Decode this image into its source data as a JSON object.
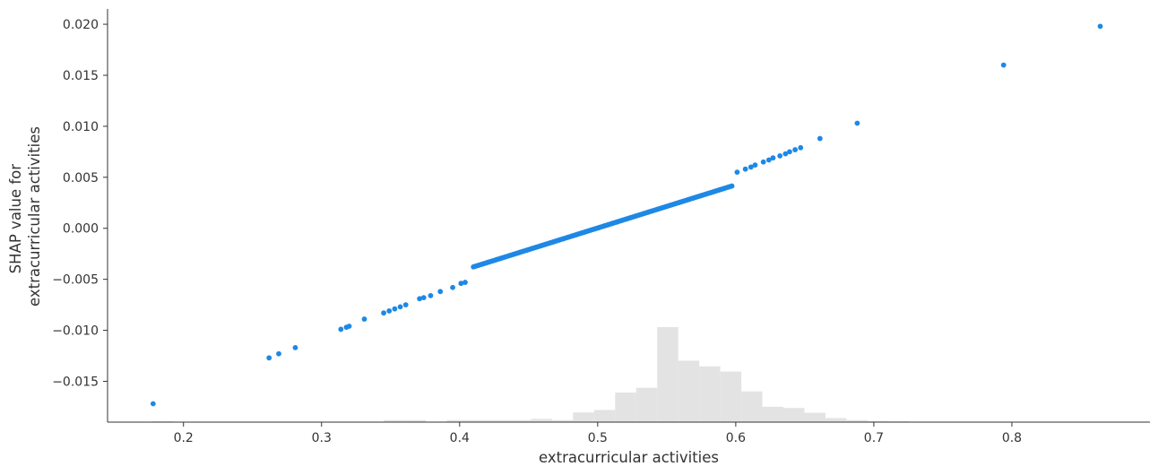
{
  "chart_data": {
    "type": "scatter",
    "xlabel": "extracurricular activities",
    "ylabel_lines": [
      "SHAP value for",
      "extracurricular activities"
    ],
    "xlim": [
      0.145,
      0.9
    ],
    "ylim": [
      -0.019,
      0.0215
    ],
    "x_ticks": [
      0.2,
      0.3,
      0.4,
      0.5,
      0.6,
      0.7,
      0.8
    ],
    "x_tick_labels": [
      "0.2",
      "0.3",
      "0.4",
      "0.5",
      "0.6",
      "0.7",
      "0.8"
    ],
    "y_ticks": [
      -0.015,
      -0.01,
      -0.005,
      0.0,
      0.005,
      0.01,
      0.015,
      0.02
    ],
    "y_tick_labels": [
      "−0.015",
      "−0.010",
      "−0.005",
      "0.000",
      "0.005",
      "0.010",
      "0.015",
      "0.020"
    ],
    "grid": false,
    "legend": "none",
    "colors": {
      "points": "#1e88e5",
      "histogram": "#e3e3e3",
      "axis": "#333333"
    },
    "trend": {
      "slope": 0.04236,
      "x_zero": 0.4993
    },
    "isolated_points": [
      {
        "x": 0.178,
        "y": -0.0172
      },
      {
        "x": 0.262,
        "y": -0.0127
      },
      {
        "x": 0.269,
        "y": -0.0123
      },
      {
        "x": 0.281,
        "y": -0.0117
      },
      {
        "x": 0.314,
        "y": -0.0099
      },
      {
        "x": 0.318,
        "y": -0.0097
      },
      {
        "x": 0.32,
        "y": -0.0096
      },
      {
        "x": 0.331,
        "y": -0.0089
      },
      {
        "x": 0.345,
        "y": -0.0083
      },
      {
        "x": 0.349,
        "y": -0.0081
      },
      {
        "x": 0.353,
        "y": -0.0079
      },
      {
        "x": 0.357,
        "y": -0.0077
      },
      {
        "x": 0.361,
        "y": -0.0075
      },
      {
        "x": 0.371,
        "y": -0.0069
      },
      {
        "x": 0.374,
        "y": -0.0068
      },
      {
        "x": 0.379,
        "y": -0.0066
      },
      {
        "x": 0.386,
        "y": -0.0062
      },
      {
        "x": 0.395,
        "y": -0.0058
      },
      {
        "x": 0.401,
        "y": -0.0054
      },
      {
        "x": 0.404,
        "y": -0.0053
      },
      {
        "x": 0.601,
        "y": 0.0055
      },
      {
        "x": 0.607,
        "y": 0.0058
      },
      {
        "x": 0.611,
        "y": 0.006
      },
      {
        "x": 0.614,
        "y": 0.0062
      },
      {
        "x": 0.62,
        "y": 0.0065
      },
      {
        "x": 0.624,
        "y": 0.0067
      },
      {
        "x": 0.627,
        "y": 0.0069
      },
      {
        "x": 0.632,
        "y": 0.0071
      },
      {
        "x": 0.636,
        "y": 0.0073
      },
      {
        "x": 0.639,
        "y": 0.0075
      },
      {
        "x": 0.643,
        "y": 0.0077
      },
      {
        "x": 0.647,
        "y": 0.0079
      },
      {
        "x": 0.661,
        "y": 0.0088
      },
      {
        "x": 0.688,
        "y": 0.0103
      },
      {
        "x": 0.794,
        "y": 0.016
      },
      {
        "x": 0.864,
        "y": 0.0198
      }
    ],
    "dense_segment": {
      "x_start": 0.41,
      "x_end": 0.598,
      "step": 0.0012
    },
    "histogram": {
      "x_start": 0.1775,
      "x_end": 0.863,
      "bins": 45,
      "counts": [
        0.2,
        0.1,
        0,
        0,
        0,
        0,
        0.1,
        0.1,
        0,
        0,
        0,
        0.5,
        0.5,
        0,
        0.5,
        0.5,
        0.5,
        0.5,
        0.8,
        0.5,
        2.4,
        3.0,
        7.3,
        8.5,
        23.5,
        15.2,
        13.8,
        12.5,
        7.6,
        3.8,
        3.5,
        2.3,
        1.0,
        0.5,
        0.3,
        0.2,
        0.1,
        0,
        0.1,
        0.1,
        0,
        0.1,
        0,
        0,
        0.1
      ],
      "max_height_fraction": 0.23
    }
  }
}
